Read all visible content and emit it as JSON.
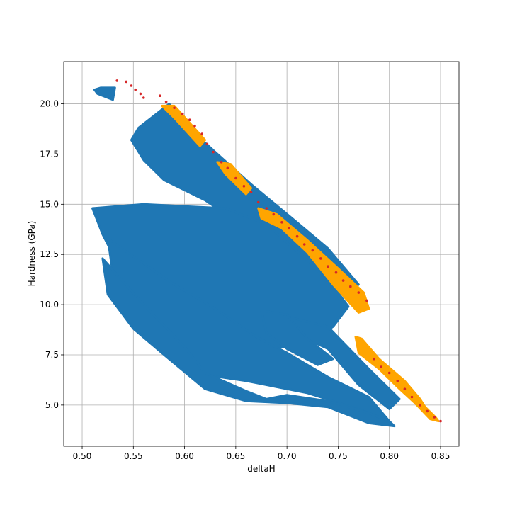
{
  "chart_data": {
    "type": "scatter",
    "title": "",
    "xlabel": "deltaH",
    "ylabel": "Hardness (GPa)",
    "xlim": [
      0.482,
      0.868
    ],
    "ylim": [
      2.95,
      22.1
    ],
    "grid": true,
    "x_ticks": [
      0.5,
      0.55,
      0.6,
      0.65,
      0.7,
      0.75,
      0.8,
      0.85
    ],
    "x_tick_labels": [
      "0.50",
      "0.55",
      "0.60",
      "0.65",
      "0.70",
      "0.75",
      "0.80",
      "0.85"
    ],
    "y_ticks": [
      5.0,
      7.5,
      10.0,
      12.5,
      15.0,
      17.5,
      20.0
    ],
    "y_tick_labels": [
      "5.0",
      "7.5",
      "10.0",
      "12.5",
      "15.0",
      "17.5",
      "20.0"
    ],
    "series": [
      {
        "color": "#1f77b4",
        "regions": [
          {
            "polygon": [
              [
                0.512,
                20.7
              ],
              [
                0.518,
                20.8
              ],
              [
                0.532,
                20.8
              ],
              [
                0.53,
                20.2
              ],
              [
                0.515,
                20.5
              ]
            ]
          },
          {
            "polygon": [
              [
                0.548,
                18.2
              ],
              [
                0.555,
                18.8
              ],
              [
                0.585,
                20.0
              ],
              [
                0.6,
                19.0
              ],
              [
                0.63,
                17.6
              ],
              [
                0.665,
                16.0
              ],
              [
                0.705,
                14.3
              ],
              [
                0.74,
                12.8
              ],
              [
                0.77,
                11.0
              ],
              [
                0.76,
                10.5
              ],
              [
                0.73,
                11.0
              ],
              [
                0.7,
                11.5
              ],
              [
                0.66,
                13.8
              ],
              [
                0.62,
                15.2
              ],
              [
                0.58,
                16.2
              ],
              [
                0.56,
                17.2
              ]
            ]
          },
          {
            "polygon": [
              [
                0.51,
                14.8
              ],
              [
                0.56,
                15.0
              ],
              [
                0.6,
                14.9
              ],
              [
                0.64,
                14.8
              ],
              [
                0.68,
                14.0
              ],
              [
                0.72,
                12.2
              ],
              [
                0.75,
                10.6
              ],
              [
                0.76,
                9.9
              ],
              [
                0.745,
                8.9
              ],
              [
                0.725,
                8.2
              ],
              [
                0.7,
                7.9
              ],
              [
                0.66,
                7.8
              ],
              [
                0.62,
                8.4
              ],
              [
                0.58,
                9.5
              ],
              [
                0.54,
                11.5
              ],
              [
                0.52,
                13.5
              ]
            ]
          },
          {
            "polygon": [
              [
                0.525,
                13.3
              ],
              [
                0.55,
                12.4
              ],
              [
                0.59,
                11.0
              ],
              [
                0.63,
                9.8
              ],
              [
                0.67,
                8.4
              ],
              [
                0.7,
                7.6
              ],
              [
                0.74,
                6.4
              ],
              [
                0.78,
                5.4
              ],
              [
                0.8,
                4.2
              ],
              [
                0.77,
                4.8
              ],
              [
                0.72,
                5.6
              ],
              [
                0.66,
                6.2
              ],
              [
                0.62,
                6.5
              ],
              [
                0.59,
                7.5
              ],
              [
                0.555,
                9.5
              ],
              [
                0.53,
                11.5
              ]
            ]
          },
          {
            "polygon": [
              [
                0.52,
                12.3
              ],
              [
                0.56,
                10.0
              ],
              [
                0.6,
                7.9
              ],
              [
                0.62,
                6.6
              ],
              [
                0.66,
                5.7
              ],
              [
                0.68,
                5.3
              ],
              [
                0.7,
                5.5
              ],
              [
                0.74,
                5.2
              ],
              [
                0.78,
                4.6
              ],
              [
                0.8,
                4.2
              ],
              [
                0.805,
                3.95
              ],
              [
                0.78,
                4.1
              ],
              [
                0.74,
                4.9
              ],
              [
                0.7,
                5.1
              ],
              [
                0.66,
                5.2
              ],
              [
                0.62,
                5.8
              ],
              [
                0.58,
                7.5
              ],
              [
                0.55,
                8.8
              ],
              [
                0.525,
                10.5
              ]
            ]
          },
          {
            "polygon": [
              [
                0.7,
                9.4
              ],
              [
                0.74,
                8.9
              ],
              [
                0.78,
                6.8
              ],
              [
                0.81,
                5.3
              ],
              [
                0.8,
                4.8
              ],
              [
                0.77,
                6.0
              ],
              [
                0.74,
                7.8
              ],
              [
                0.71,
                8.5
              ]
            ]
          },
          {
            "polygon": [
              [
                0.675,
                9.7
              ],
              [
                0.7,
                9.5
              ],
              [
                0.72,
                8.3
              ],
              [
                0.745,
                7.3
              ],
              [
                0.73,
                7.0
              ],
              [
                0.7,
                7.8
              ],
              [
                0.68,
                8.6
              ]
            ]
          }
        ]
      },
      {
        "color": "#ffa500",
        "regions": [
          {
            "polygon": [
              [
                0.578,
                19.9
              ],
              [
                0.59,
                19.9
              ],
              [
                0.62,
                18.2
              ],
              [
                0.615,
                17.9
              ],
              [
                0.59,
                19.3
              ]
            ]
          },
          {
            "polygon": [
              [
                0.632,
                17.1
              ],
              [
                0.645,
                17.0
              ],
              [
                0.665,
                15.8
              ],
              [
                0.66,
                15.5
              ],
              [
                0.64,
                16.5
              ]
            ]
          },
          {
            "polygon": [
              [
                0.672,
                14.8
              ],
              [
                0.69,
                14.5
              ],
              [
                0.72,
                13.2
              ],
              [
                0.75,
                11.8
              ],
              [
                0.775,
                10.6
              ],
              [
                0.78,
                9.8
              ],
              [
                0.77,
                9.6
              ],
              [
                0.745,
                11.0
              ],
              [
                0.72,
                12.6
              ],
              [
                0.695,
                13.8
              ],
              [
                0.675,
                14.3
              ]
            ]
          },
          {
            "polygon": [
              [
                0.767,
                8.4
              ],
              [
                0.773,
                8.3
              ],
              [
                0.79,
                7.3
              ],
              [
                0.815,
                6.2
              ],
              [
                0.83,
                5.3
              ],
              [
                0.835,
                4.9
              ],
              [
                0.845,
                4.4
              ],
              [
                0.848,
                4.2
              ],
              [
                0.84,
                4.3
              ],
              [
                0.825,
                5.1
              ],
              [
                0.81,
                5.8
              ],
              [
                0.79,
                6.8
              ],
              [
                0.77,
                7.6
              ]
            ]
          }
        ]
      },
      {
        "color": "#d62728",
        "points": [
          [
            0.534,
            21.15
          ],
          [
            0.543,
            21.1
          ],
          [
            0.548,
            20.9
          ],
          [
            0.552,
            20.7
          ],
          [
            0.557,
            20.5
          ],
          [
            0.56,
            20.3
          ],
          [
            0.576,
            20.4
          ],
          [
            0.582,
            20.1
          ],
          [
            0.59,
            19.8
          ],
          [
            0.598,
            19.5
          ],
          [
            0.605,
            19.2
          ],
          [
            0.61,
            18.9
          ],
          [
            0.617,
            18.5
          ],
          [
            0.622,
            18.0
          ],
          [
            0.628,
            17.6
          ],
          [
            0.636,
            17.1
          ],
          [
            0.642,
            16.8
          ],
          [
            0.65,
            16.3
          ],
          [
            0.658,
            15.9
          ],
          [
            0.665,
            15.6
          ],
          [
            0.672,
            15.1
          ],
          [
            0.68,
            14.8
          ],
          [
            0.687,
            14.5
          ],
          [
            0.695,
            14.1
          ],
          [
            0.702,
            13.8
          ],
          [
            0.71,
            13.4
          ],
          [
            0.717,
            13.0
          ],
          [
            0.725,
            12.7
          ],
          [
            0.733,
            12.3
          ],
          [
            0.74,
            11.9
          ],
          [
            0.748,
            11.6
          ],
          [
            0.755,
            11.2
          ],
          [
            0.762,
            10.9
          ],
          [
            0.77,
            10.6
          ],
          [
            0.778,
            10.2
          ],
          [
            0.785,
            7.3
          ],
          [
            0.792,
            6.9
          ],
          [
            0.8,
            6.6
          ],
          [
            0.808,
            6.2
          ],
          [
            0.815,
            5.8
          ],
          [
            0.822,
            5.4
          ],
          [
            0.83,
            5.0
          ],
          [
            0.837,
            4.7
          ],
          [
            0.844,
            4.4
          ],
          [
            0.85,
            4.2
          ]
        ]
      }
    ]
  }
}
